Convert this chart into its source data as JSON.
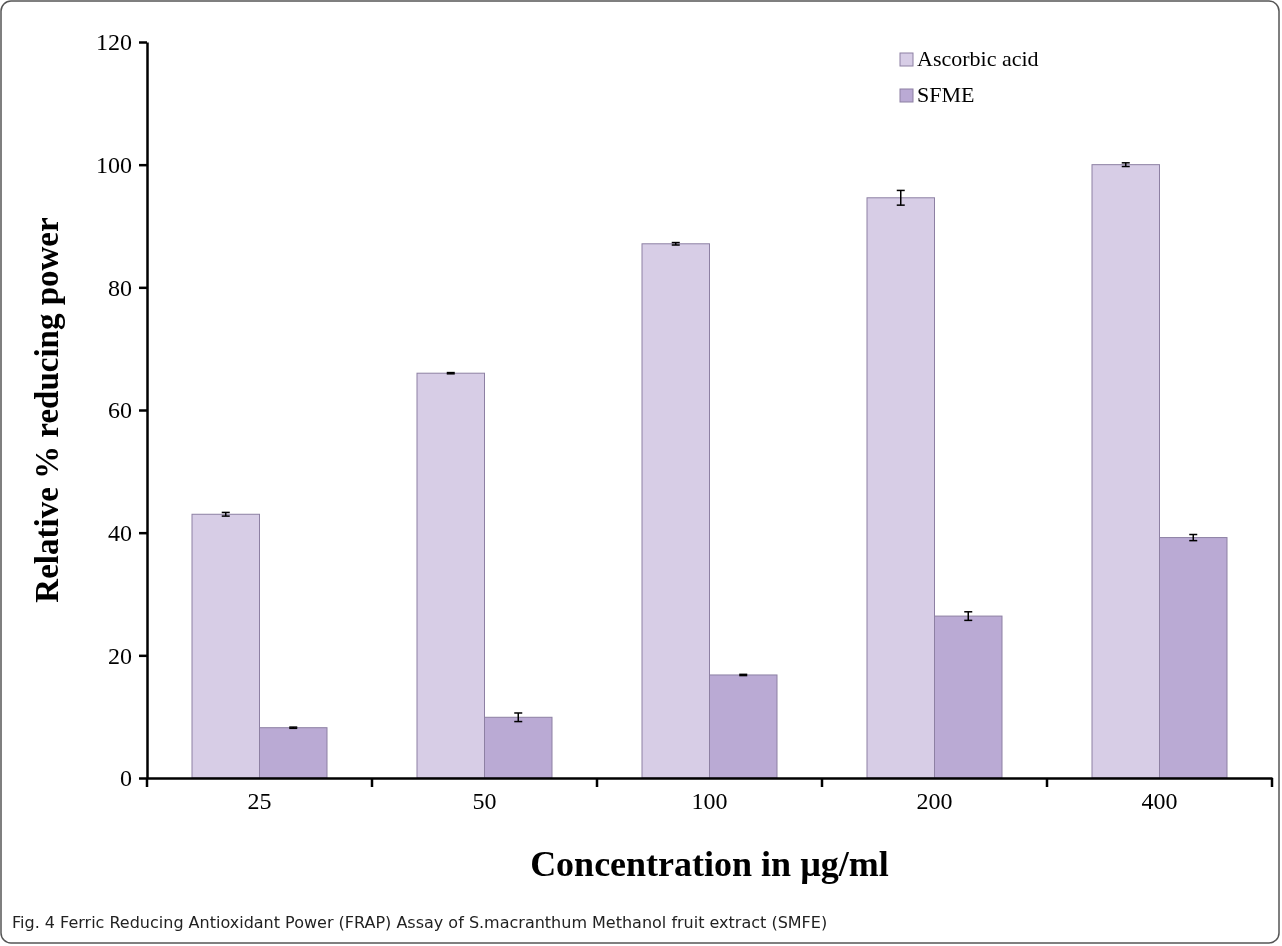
{
  "chart_data": {
    "type": "bar",
    "xlabel": "Concentration in µg/ml",
    "ylabel": "Relative % reducing power",
    "categories": [
      "25",
      "50",
      "100",
      "200",
      "400"
    ],
    "series": [
      {
        "name": "Ascorbic acid",
        "color": "#d7cde6",
        "values": [
          43,
          66,
          87.1,
          94.6,
          100
        ],
        "errors": [
          0.3,
          0.1,
          0.2,
          1.2,
          0.3
        ]
      },
      {
        "name": "SFME",
        "color": "#baaad4",
        "values": [
          8.2,
          9.9,
          16.8,
          26.4,
          39.2
        ],
        "errors": [
          0.1,
          0.7,
          0.1,
          0.7,
          0.5
        ]
      }
    ],
    "ylim": [
      0,
      120
    ],
    "yticks": [
      0,
      20,
      40,
      60,
      80,
      100,
      120
    ],
    "grid": false,
    "legend": "top right",
    "annotations": [
      "Fig. 4 Ferric Reducing Antioxidant Power (FRAP) Assay of S.macranthum Methanol fruit extract (SMFE)"
    ]
  }
}
